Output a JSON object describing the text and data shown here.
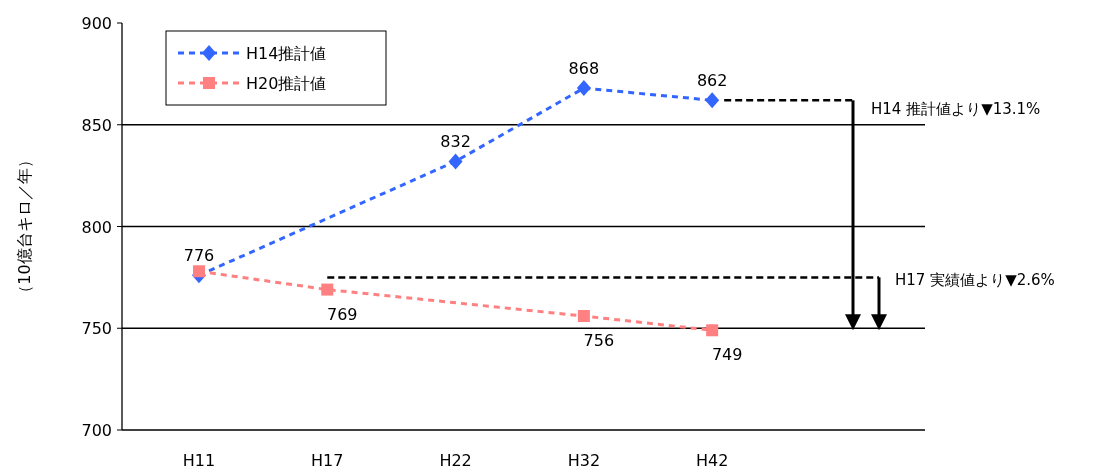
{
  "chart_data": {
    "type": "line",
    "ylabel": "（10億台キロ／年）",
    "categories": [
      "H11",
      "H17",
      "H22",
      "H32",
      "H42"
    ],
    "series": [
      {
        "name": "H14推計値",
        "color": "#3366ff",
        "marker": "diamond",
        "values": [
          776,
          null,
          832,
          868,
          862
        ],
        "value_labels": [
          "776",
          null,
          "832",
          "868",
          "862"
        ]
      },
      {
        "name": "H20推計値",
        "color": "#ff8080",
        "marker": "square",
        "values": [
          778,
          769,
          null,
          756,
          749
        ],
        "value_labels": [
          null,
          "769",
          null,
          "756",
          "749"
        ]
      }
    ],
    "line_style": "dashed",
    "ylim": [
      700,
      900
    ],
    "yticks": [
      700,
      750,
      800,
      850,
      900
    ],
    "grid": "y",
    "legend": "top left",
    "ref_lines": [
      {
        "axis": "y",
        "value": 862,
        "label": "H14 推計値より▼13.1%",
        "color": "#000000",
        "line_style": "dashed"
      },
      {
        "axis": "y",
        "value": 775,
        "label": "H17 実績値より▼2.6%",
        "color": "#000000",
        "line_style": "dashed"
      }
    ]
  }
}
